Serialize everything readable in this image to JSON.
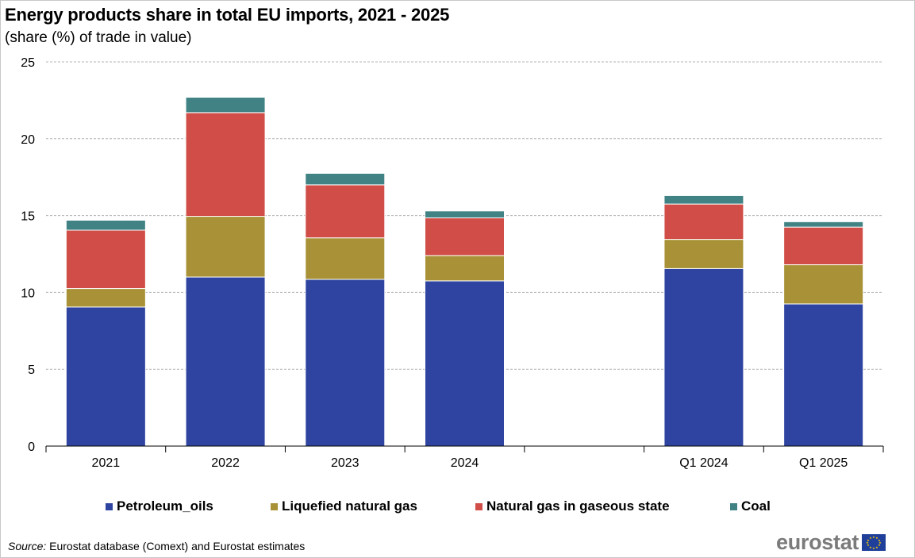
{
  "chart_data": {
    "type": "bar",
    "stacked": true,
    "title": "Energy products share in total EU imports, 2021 - 2025",
    "subtitle": "(share (%) of trade in value)",
    "categories": [
      "2021",
      "2022",
      "2023",
      "2024",
      "",
      "Q1 2024",
      "Q1 2025"
    ],
    "series": [
      {
        "name": "Petroleum_oils",
        "color": "#2e44a0",
        "values": [
          9.05,
          11.0,
          10.85,
          10.75,
          null,
          11.55,
          9.25
        ]
      },
      {
        "name": "Liquefied natural gas",
        "color": "#a89136",
        "values": [
          1.2,
          3.95,
          2.7,
          1.65,
          null,
          1.9,
          2.55
        ]
      },
      {
        "name": "Natural gas in gaseous state",
        "color": "#d04e47",
        "values": [
          3.8,
          6.75,
          3.45,
          2.45,
          null,
          2.3,
          2.45
        ]
      },
      {
        "name": "Coal",
        "color": "#418284",
        "values": [
          0.65,
          1.0,
          0.75,
          0.45,
          null,
          0.55,
          0.35
        ]
      }
    ],
    "ylim": [
      0,
      25
    ],
    "yticks": [
      "0",
      "5",
      "10",
      "15",
      "20",
      "25"
    ],
    "grid": true,
    "legend_position": "bottom"
  },
  "legend": {
    "items": [
      {
        "label": "Petroleum_oils",
        "color": "#2e44a0"
      },
      {
        "label": "Liquefied natural gas",
        "color": "#a89136"
      },
      {
        "label": "Natural gas in gaseous state",
        "color": "#d04e47"
      },
      {
        "label": "Coal",
        "color": "#418284"
      }
    ]
  },
  "footer": {
    "source_label": "Source:",
    "source_text": " Eurostat database (Comext) and Eurostat estimates",
    "logo_text": "eurostat"
  }
}
